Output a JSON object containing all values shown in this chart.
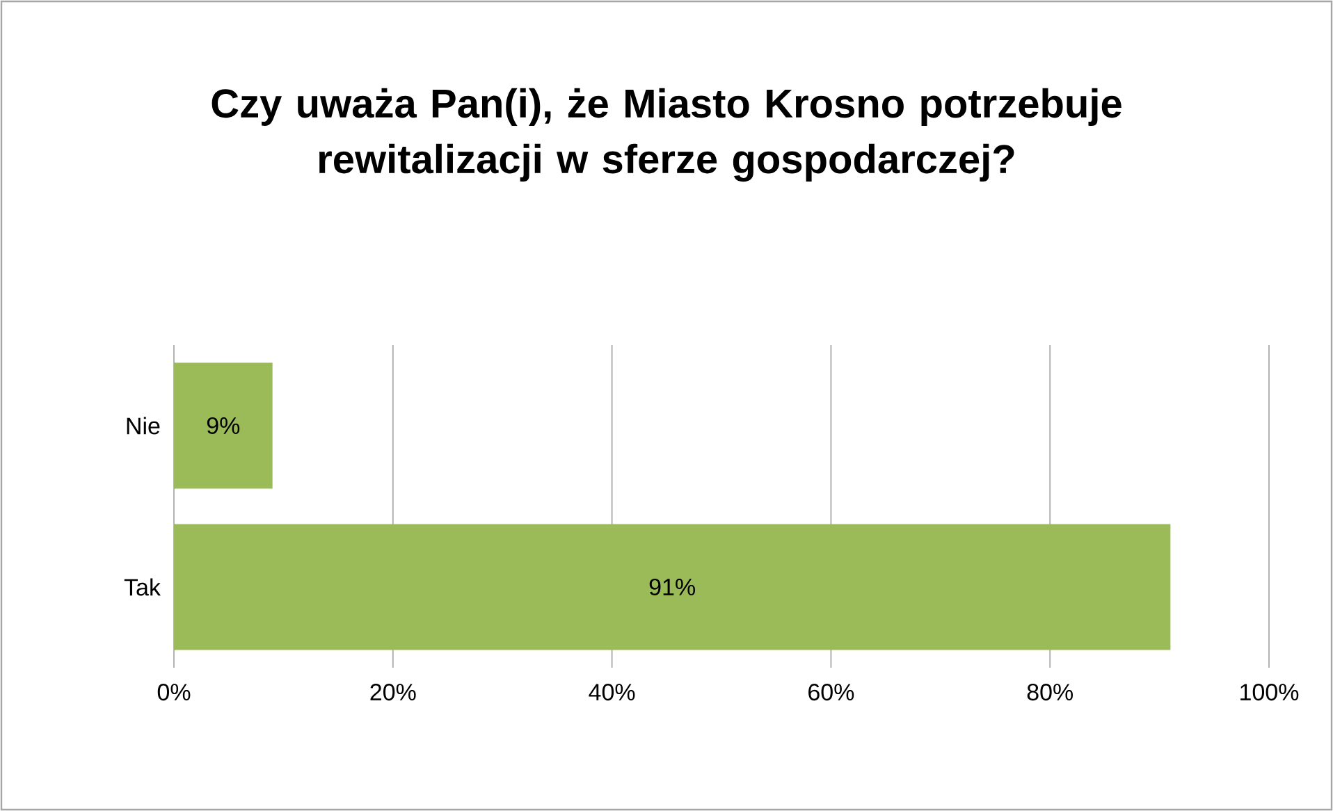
{
  "chart_data": {
    "type": "bar",
    "orientation": "horizontal",
    "title": "Czy uważa Pan(i), że Miasto Krosno potrzebuje rewitalizacji w sferze gospodarczej?",
    "categories": [
      "Nie",
      "Tak"
    ],
    "values": [
      9,
      91
    ],
    "color": "#9bbb59",
    "value_labels": [
      "9%",
      "91%"
    ],
    "xlim": [
      0,
      100
    ],
    "xticks": [
      {
        "value": 0,
        "label": "0%"
      },
      {
        "value": 20,
        "label": "20%"
      },
      {
        "value": 40,
        "label": "40%"
      },
      {
        "value": 60,
        "label": "60%"
      },
      {
        "value": 80,
        "label": "80%"
      },
      {
        "value": 100,
        "label": "100%"
      }
    ],
    "grid": "x"
  }
}
